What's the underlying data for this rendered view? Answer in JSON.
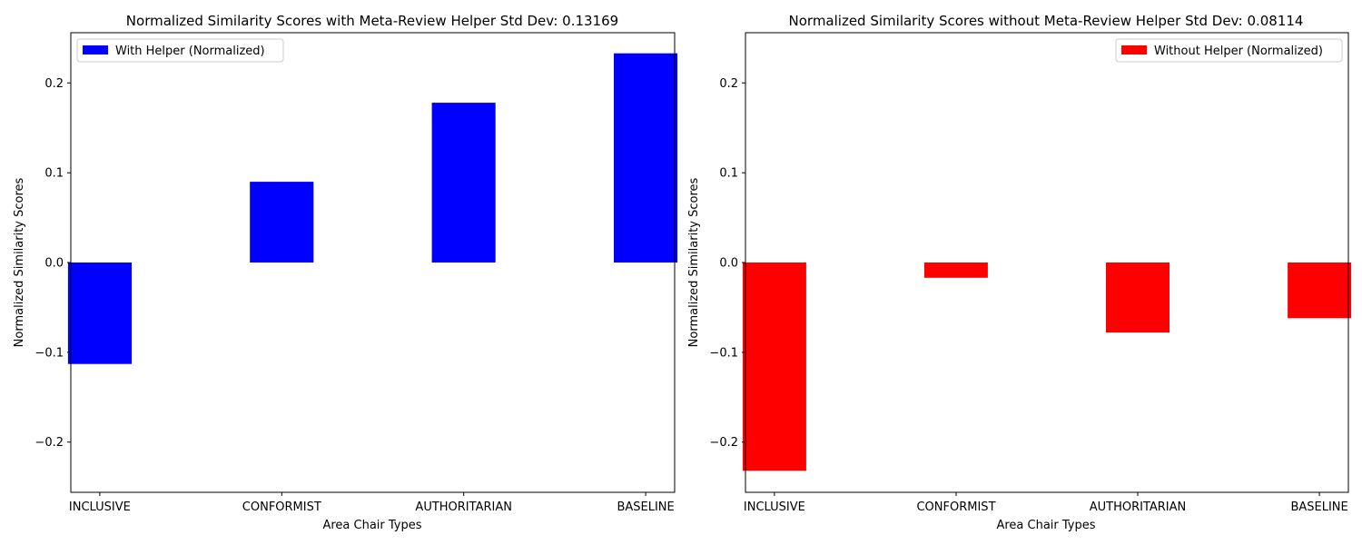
{
  "chart_data": [
    {
      "type": "bar",
      "title": "Normalized Similarity Scores with Meta-Review Helper Std Dev: 0.13169",
      "xlabel": "Area Chair Types",
      "ylabel": "Normalized Similarity Scores",
      "categories": [
        "INCLUSIVE",
        "CONFORMIST",
        "AUTHORITARIAN",
        "BASELINE"
      ],
      "series": [
        {
          "name": "With Helper (Normalized)",
          "color": "#0000ff",
          "values": [
            -0.113,
            0.09,
            0.178,
            0.233
          ]
        }
      ],
      "ylim": [
        -0.256,
        0.256
      ],
      "yticks": [
        -0.2,
        -0.1,
        0.0,
        0.1,
        0.2
      ],
      "ytick_labels": [
        "−0.2",
        "−0.1",
        "0.0",
        "0.1",
        "0.2"
      ],
      "grid": false,
      "legend_position": "top-left"
    },
    {
      "type": "bar",
      "title": "Normalized Similarity Scores without Meta-Review Helper Std Dev: 0.08114",
      "xlabel": "Area Chair Types",
      "ylabel": "Normalized Similarity Scores",
      "categories": [
        "INCLUSIVE",
        "CONFORMIST",
        "AUTHORITARIAN",
        "BASELINE"
      ],
      "series": [
        {
          "name": "Without Helper (Normalized)",
          "color": "#ff0000",
          "values": [
            -0.232,
            -0.017,
            -0.078,
            -0.062
          ]
        }
      ],
      "ylim": [
        -0.256,
        0.256
      ],
      "yticks": [
        -0.2,
        -0.1,
        0.0,
        0.1,
        0.2
      ],
      "ytick_labels": [
        "−0.2",
        "−0.1",
        "0.0",
        "0.1",
        "0.2"
      ],
      "grid": false,
      "legend_position": "top-right"
    }
  ]
}
